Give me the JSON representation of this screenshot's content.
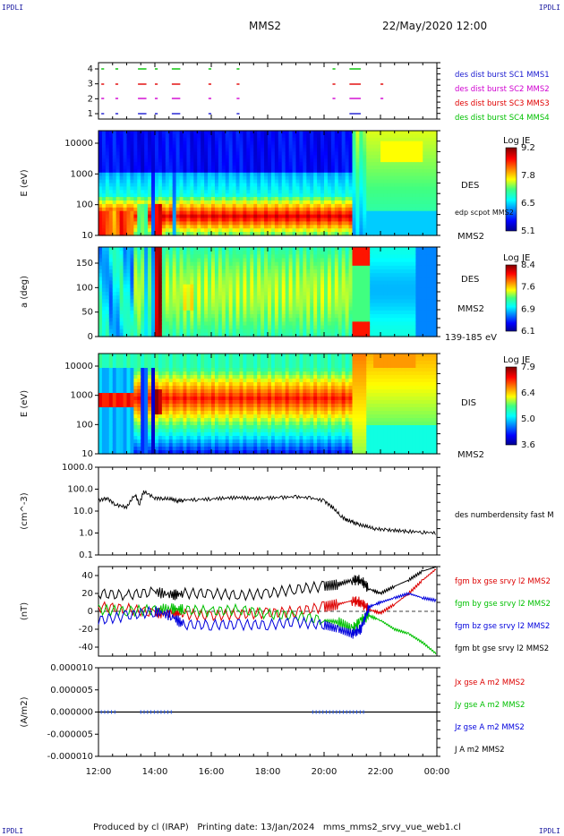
{
  "header": {
    "title": "MMS2",
    "date": "22/May/2020 12:00",
    "corner": "IPDLI"
  },
  "footer": "Produced by cl (IRAP)   Printing date: 13/Jan/2024   mms_mms2_srvy_vue_web1.cl",
  "chart_data": [
    {
      "type": "table",
      "name": "burst",
      "ticks": [
        "4",
        "3",
        "2",
        "1"
      ],
      "legend": [
        {
          "label": "des dist burst SC1 MMS1",
          "color": "#1a1ad0"
        },
        {
          "label": "des dist burst SC2 MMS2",
          "color": "#d000d0"
        },
        {
          "label": "des dist burst SC3 MMS3",
          "color": "#e00000"
        },
        {
          "label": "des dist burst SC4 MMS4",
          "color": "#00c000"
        }
      ]
    },
    {
      "type": "heatmap",
      "name": "des-energy",
      "ylabel": "E (eV)",
      "ticks": [
        "10000",
        "1000",
        "100",
        "10"
      ],
      "colorbar": {
        "title": "Log JE",
        "labels": [
          "9.2",
          "7.8",
          "6.5",
          "5.1"
        ]
      },
      "right_labels": [
        "DES",
        "edp scpot MMS2",
        "MMS2"
      ]
    },
    {
      "type": "heatmap",
      "name": "des-pitch",
      "ylabel": "a (deg)",
      "ticks": [
        "150",
        "100",
        "50",
        "0"
      ],
      "colorbar": {
        "title": "Log JE",
        "labels": [
          "8.4",
          "7.6",
          "6.9",
          "6.1"
        ]
      },
      "right_labels": [
        "DES",
        "MMS2",
        "139-185 eV"
      ]
    },
    {
      "type": "heatmap",
      "name": "dis-energy",
      "ylabel": "E (eV)",
      "ticks": [
        "10000",
        "1000",
        "100",
        "10"
      ],
      "colorbar": {
        "title": "Log JE",
        "labels": [
          "7.9",
          "6.4",
          "5.0",
          "3.6"
        ]
      },
      "right_labels": [
        "DIS",
        "MMS2"
      ]
    },
    {
      "type": "line",
      "name": "density",
      "ylabel": "(cm^-3)",
      "yscale": "log",
      "ylim": [
        0.1,
        1000
      ],
      "ticks": [
        "1000.0",
        "100.0",
        "10.0",
        "1.0",
        "0.1"
      ],
      "legend": [
        {
          "label": "des numberdensity fast M",
          "color": "#000000"
        }
      ],
      "x": [
        0,
        0.3,
        0.6,
        1.0,
        1.3,
        1.45,
        1.6,
        2.0,
        2.3,
        2.6,
        2.8,
        3.0,
        3.5,
        4.0,
        4.5,
        5.0,
        5.5,
        6.0,
        6.5,
        7.0,
        7.5,
        8.0,
        8.3,
        8.6,
        8.8,
        9.0,
        9.2,
        9.5,
        9.8,
        10.2,
        10.6,
        11.0,
        11.5,
        12.0
      ],
      "y": [
        30,
        40,
        20,
        15,
        60,
        20,
        80,
        40,
        38,
        35,
        30,
        32,
        34,
        36,
        40,
        42,
        38,
        40,
        42,
        45,
        40,
        30,
        15,
        6,
        4,
        3.2,
        2.5,
        2,
        1.6,
        1.4,
        1.3,
        1.2,
        1.1,
        1.0
      ]
    },
    {
      "type": "line",
      "name": "magnetic-field",
      "ylabel": "(nT)",
      "ylim": [
        -50,
        50
      ],
      "ticks": [
        "40",
        "20",
        "0",
        "-20",
        "-40"
      ],
      "series": [
        {
          "label": "fgm bx gse srvy l2 MMS2",
          "color": "#dd0000",
          "x": [
            0,
            1,
            2,
            2.6,
            3,
            4,
            5,
            6,
            7,
            8,
            8.5,
            9,
            9.3,
            9.6,
            10,
            10.5,
            11,
            11.5,
            12
          ],
          "y": [
            5,
            3,
            -2,
            -2,
            -3,
            -5,
            -3,
            -2,
            0,
            5,
            8,
            12,
            10,
            2,
            -2,
            8,
            20,
            35,
            48
          ]
        },
        {
          "label": "fgm by gse srvy l2 MMS2",
          "color": "#00c000",
          "x": [
            0,
            1,
            2,
            2.6,
            3,
            4,
            5,
            6,
            7,
            8,
            8.5,
            9,
            9.3,
            9.6,
            10,
            10.5,
            11,
            11.5,
            12
          ],
          "y": [
            2,
            0,
            2,
            3,
            2,
            0,
            2,
            -3,
            -5,
            -10,
            -12,
            -20,
            -10,
            -5,
            -10,
            -20,
            -25,
            -35,
            -48
          ]
        },
        {
          "label": "fgm bz gse srvy l2 MMS2",
          "color": "#0000dd",
          "x": [
            0,
            1,
            2,
            2.6,
            3,
            4,
            5,
            6,
            7,
            8,
            8.5,
            9,
            9.3,
            9.6,
            10,
            10.5,
            11,
            11.5,
            12
          ],
          "y": [
            -10,
            -5,
            0,
            -5,
            -15,
            -15,
            -15,
            -15,
            -12,
            -15,
            -20,
            -25,
            -20,
            5,
            10,
            15,
            20,
            15,
            12
          ]
        },
        {
          "label": "fgm bt gse srvy l2 MMS2",
          "color": "#000000",
          "x": [
            0,
            1,
            2,
            2.6,
            3,
            4,
            5,
            6,
            7,
            8,
            8.5,
            9,
            9.3,
            9.6,
            10,
            10.5,
            11,
            11.5,
            12
          ],
          "y": [
            20,
            18,
            22,
            18,
            20,
            20,
            18,
            20,
            25,
            28,
            30,
            35,
            35,
            25,
            20,
            28,
            35,
            45,
            50
          ]
        }
      ]
    },
    {
      "type": "line",
      "name": "current-density",
      "ylabel": "(A/m2)",
      "ylim": [
        -1e-05,
        1e-05
      ],
      "ticks": [
        "0.000010",
        "0.000005",
        "0.000000",
        "-0.000005",
        "-0.000010"
      ],
      "series": [
        {
          "label": "Jx gse A m2 MMS2",
          "color": "#dd0000"
        },
        {
          "label": "Jy gse A m2 MMS2",
          "color": "#00c000"
        },
        {
          "label": "Jz gse A m2 MMS2",
          "color": "#0000dd"
        },
        {
          "label": "J A m2 MMS2",
          "color": "#000000"
        }
      ]
    }
  ],
  "time_axis": {
    "ticks": [
      "12:00",
      "14:00",
      "16:00",
      "18:00",
      "20:00",
      "22:00",
      "00:00"
    ]
  }
}
